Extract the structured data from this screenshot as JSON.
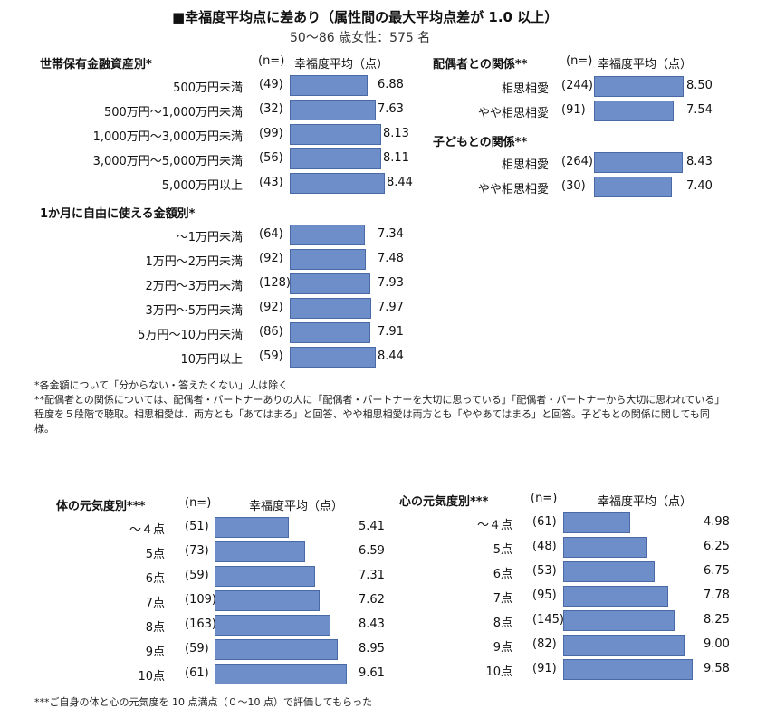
{
  "header": {
    "title": "■幸福度平均点に差あり（属性間の最大平均点差が 1.0 以上）",
    "subtitle": "50～86 歳女性：575 名"
  },
  "chart_data": [
    {
      "type": "bar",
      "title": "世帯保有金融資産別*",
      "n_header": "(n=)",
      "value_header": "幸福度平均（点）",
      "categories": [
        "500万円未満",
        "500万円～1,000万円未満",
        "1,000万円～3,000万円未満",
        "3,000万円～5,000万円未満",
        "5,000万円以上"
      ],
      "n": [
        "(49)",
        "(32)",
        "(99)",
        "(56)",
        "(43)"
      ],
      "values": [
        6.88,
        7.63,
        8.13,
        8.11,
        8.44
      ],
      "value_labels": [
        "6.88",
        "7.63",
        "8.13",
        "8.11",
        "8.44"
      ]
    },
    {
      "type": "bar",
      "title": "1か月に自由に使える金額別*",
      "n_header": "",
      "value_header": "",
      "categories": [
        "～1万円未満",
        "1万円～2万円未満",
        "2万円～3万円未満",
        "3万円～5万円未満",
        "5万円～10万円未満",
        "10万円以上"
      ],
      "n": [
        "(64)",
        "(92)",
        "(128)",
        "(92)",
        "(86)",
        "(59)"
      ],
      "values": [
        7.34,
        7.48,
        7.93,
        7.97,
        7.91,
        8.44
      ],
      "value_labels": [
        "7.34",
        "7.48",
        "7.93",
        "7.97",
        "7.91",
        "8.44"
      ]
    },
    {
      "type": "bar",
      "title": "配偶者との関係**",
      "n_header": "(n=)",
      "value_header": "幸福度平均（点）",
      "categories": [
        "相思相愛",
        "やや相思相愛"
      ],
      "n": [
        "(244)",
        "(91)"
      ],
      "values": [
        8.5,
        7.54
      ],
      "value_labels": [
        "8.50",
        "7.54"
      ]
    },
    {
      "type": "bar",
      "title": "子どもとの関係**",
      "n_header": "",
      "value_header": "",
      "categories": [
        "相思相愛",
        "やや相思相愛"
      ],
      "n": [
        "(264)",
        "(30)"
      ],
      "values": [
        8.43,
        7.4
      ],
      "value_labels": [
        "8.43",
        "7.40"
      ]
    },
    {
      "type": "bar",
      "title": "体の元気度別***",
      "n_header": "(n=)",
      "value_header": "幸福度平均（点）",
      "categories": [
        "～４点",
        "5点",
        "6点",
        "7点",
        "8点",
        "9点",
        "10点"
      ],
      "n": [
        "(51)",
        "(73)",
        "(59)",
        "(109)",
        "(163)",
        "(59)",
        "(61)"
      ],
      "values": [
        5.41,
        6.59,
        7.31,
        7.62,
        8.43,
        8.95,
        9.61
      ],
      "value_labels": [
        "5.41",
        "6.59",
        "7.31",
        "7.62",
        "8.43",
        "8.95",
        "9.61"
      ]
    },
    {
      "type": "bar",
      "title": "心の元気度別***",
      "n_header": "(n=)",
      "value_header": "幸福度平均（点）",
      "categories": [
        "～４点",
        "5点",
        "6点",
        "7点",
        "8点",
        "9点",
        "10点"
      ],
      "n": [
        "(61)",
        "(48)",
        "(53)",
        "(95)",
        "(145)",
        "(82)",
        "(91)"
      ],
      "values": [
        4.98,
        6.25,
        6.75,
        7.78,
        8.25,
        9.0,
        9.58
      ],
      "value_labels": [
        "4.98",
        "6.25",
        "6.75",
        "7.78",
        "8.25",
        "9.00",
        "9.58"
      ]
    }
  ],
  "notes": {
    "note1": "*各金額について「分からない・答えたくない」人は除く",
    "note2": "**配偶者との関係については、配偶者・パートナーありの人に「配偶者・パートナーを大切に思っている」「配偶者・パートナーから大切に思われている」程度を５段階で聴取。相思相愛は、両方とも「あてはまる」と回答、やや相思相愛は両方とも「ややあてはまる」と回答。子どもとの関係に関しても同様。",
    "note3": "***ご自身の体と心の元気度を 10 点満点（０～10 点）で評価してもらった"
  },
  "colors": {
    "bar_fill": "#6e8ec9",
    "bar_border": "#4a6aa6"
  }
}
